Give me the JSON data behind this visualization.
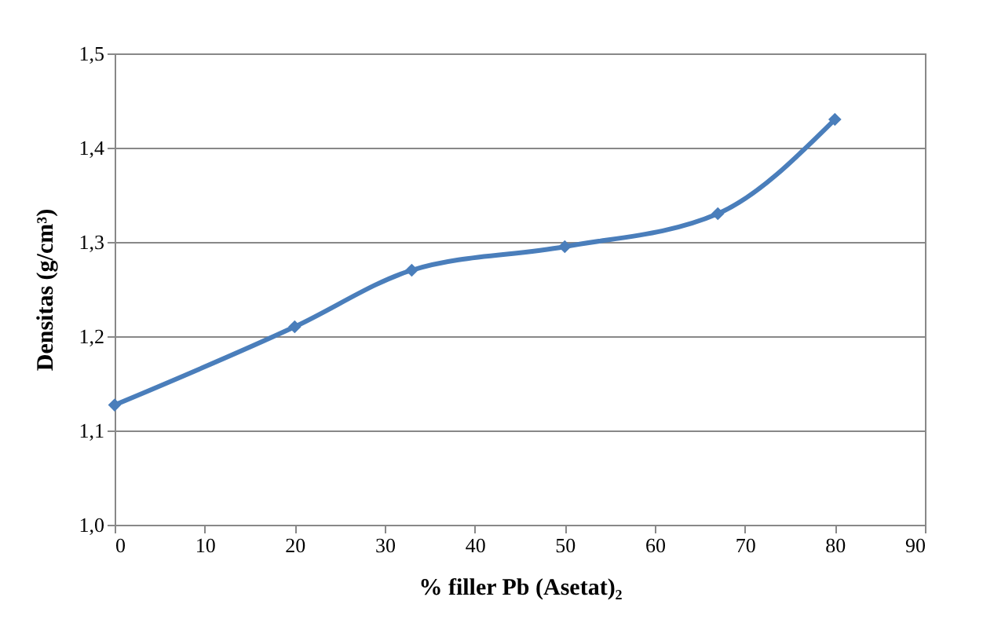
{
  "chart_data": {
    "type": "line",
    "xlabel": "% filler Pb (Asetat)₂",
    "ylabel": "Densitas (g/cm³)",
    "x": [
      0,
      20,
      33,
      50,
      67,
      80
    ],
    "series": [
      {
        "color": "#4a7ebb",
        "values": [
          1.127,
          1.21,
          1.27,
          1.295,
          1.33,
          1.43
        ]
      }
    ],
    "xlim": [
      0,
      90
    ],
    "xticks": [
      0,
      10,
      20,
      30,
      40,
      50,
      60,
      70,
      80,
      90
    ],
    "ylim": [
      1.0,
      1.5
    ],
    "yticks": [
      {
        "value": 1.0,
        "label": "1,0"
      },
      {
        "value": 1.1,
        "label": "1,1"
      },
      {
        "value": 1.2,
        "label": "1,2"
      },
      {
        "value": 1.3,
        "label": "1,3"
      },
      {
        "value": 1.4,
        "label": "1,4"
      },
      {
        "value": 1.5,
        "label": "1,5"
      }
    ],
    "grid": "y",
    "marker": "diamond",
    "line_style": "solid"
  }
}
